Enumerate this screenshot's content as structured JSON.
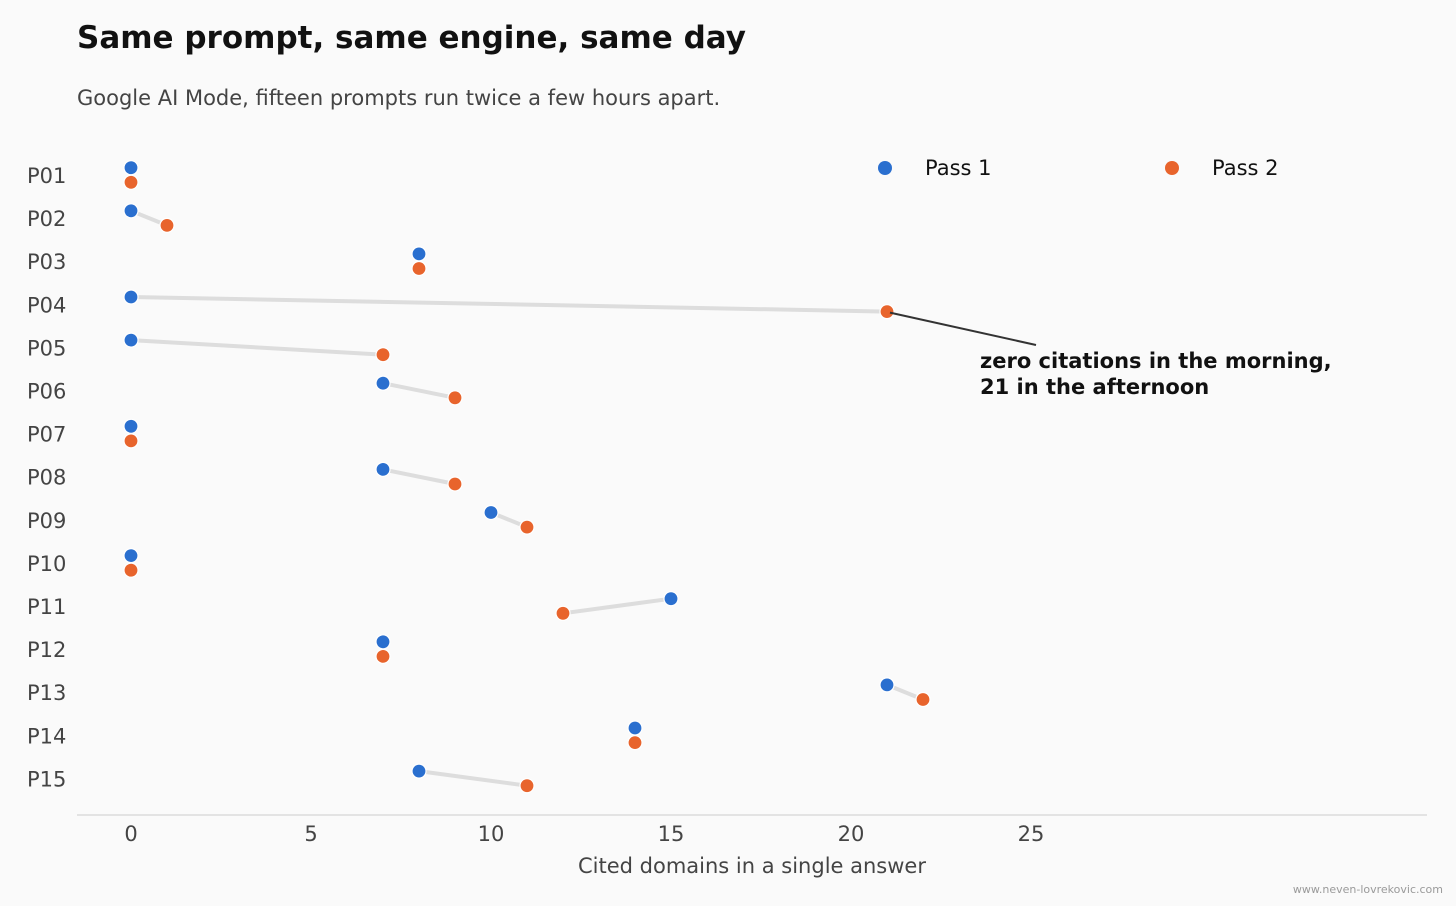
{
  "title": "Same prompt, same engine, same day",
  "subtitle": "Google AI Mode, fifteen prompts run twice a few hours apart.",
  "watermark": "www.neven-lovrekovic.com",
  "colors": {
    "pass1": "#2a6fcf",
    "pass2": "#e8642c",
    "connector": "#dddddd",
    "axis": "#cccccc",
    "text": "#444444"
  },
  "chart_data": {
    "type": "scatter",
    "orientation": "dumbbell-horizontal",
    "title": "Same prompt, same engine, same day",
    "subtitle": "Google AI Mode, fifteen prompts run twice a few hours apart.",
    "xlabel": "Cited domains in a single answer",
    "ylabel": "",
    "xlim": [
      0,
      25
    ],
    "x_ticks": [
      0,
      5,
      10,
      15,
      20,
      25
    ],
    "categories": [
      "P01",
      "P02",
      "P03",
      "P04",
      "P05",
      "P06",
      "P07",
      "P08",
      "P09",
      "P10",
      "P11",
      "P12",
      "P13",
      "P14",
      "P15"
    ],
    "series": [
      {
        "name": "Pass 1",
        "color": "#2a6fcf",
        "values": [
          0,
          0,
          8,
          0,
          0,
          7,
          0,
          7,
          10,
          0,
          15,
          7,
          21,
          14,
          8
        ]
      },
      {
        "name": "Pass 2",
        "color": "#e8642c",
        "values": [
          0,
          1,
          8,
          21,
          7,
          9,
          0,
          9,
          11,
          0,
          12,
          7,
          22,
          14,
          11
        ]
      }
    ],
    "legend": {
      "position": "top-right",
      "entries": [
        "Pass 1",
        "Pass 2"
      ]
    },
    "grid": false,
    "annotation": {
      "text_line1": "zero citations in the morning,",
      "text_line2": "21 in the afternoon",
      "target_category": "P04",
      "target_x": 21
    }
  }
}
